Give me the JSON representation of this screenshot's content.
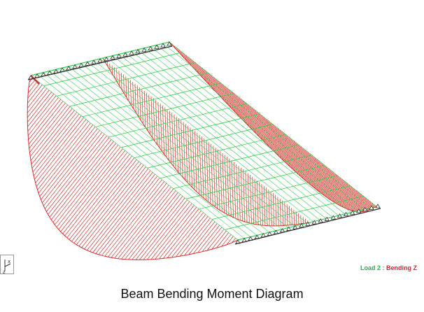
{
  "caption": "Beam Bending Moment Diagram",
  "legend": {
    "load": "Load 2",
    "separator": " : ",
    "result": "Bending Z"
  },
  "axis_triad": {
    "x_label": "x",
    "z_label": "z"
  },
  "colors": {
    "beams": "#2fd14a",
    "moment": "#e02b2b",
    "supports": "#333333",
    "background": "#ffffff"
  }
}
